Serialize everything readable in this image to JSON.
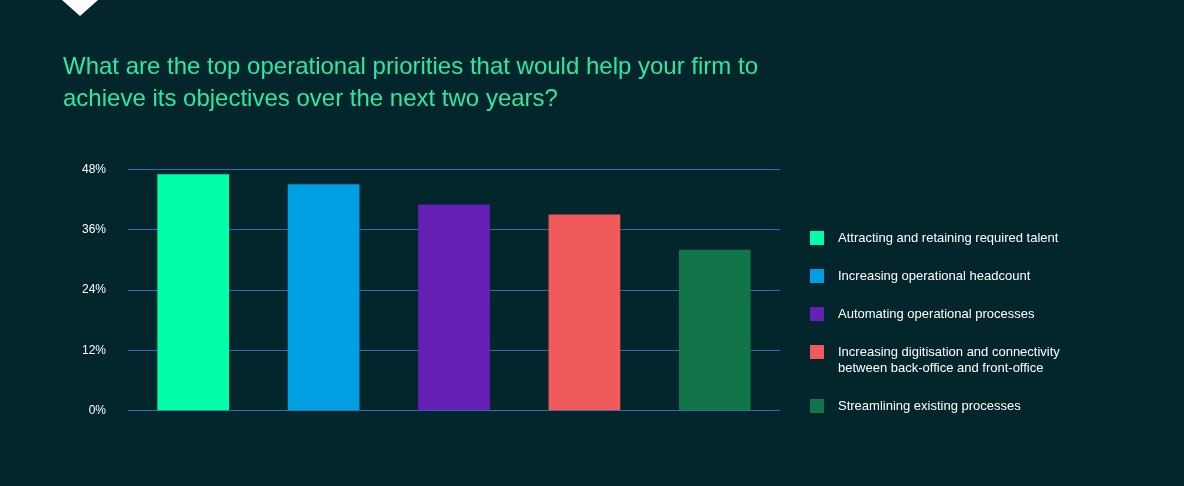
{
  "chart_data": {
    "type": "bar",
    "title": "What are the top operational priorities that would help your firm to achieve its objectives over the next two years?",
    "categories": [
      null,
      null,
      null,
      null,
      null
    ],
    "series": [
      {
        "name": "Attracting and retaining required talent",
        "color": "#00ffa8",
        "values": [
          47,
          null,
          null,
          null,
          null
        ]
      },
      {
        "name": "Increasing operational headcount",
        "color": "#009fe3",
        "values": [
          null,
          45,
          null,
          null,
          null
        ]
      },
      {
        "name": "Automating operational processes",
        "color": "#6420b4",
        "values": [
          null,
          null,
          41,
          null,
          null
        ]
      },
      {
        "name": "Increasing digitisation and connectivity between back-office and front-office",
        "color": "#f05a5a",
        "values": [
          null,
          null,
          null,
          39,
          null
        ]
      },
      {
        "name": "Streamlining existing processes",
        "color": "#12754a",
        "values": [
          null,
          null,
          null,
          null,
          32
        ]
      }
    ],
    "ylim": [
      0,
      48
    ],
    "yticks": [
      {
        "value": 0,
        "label": "0%"
      },
      {
        "value": 12,
        "label": "12%"
      },
      {
        "value": 24,
        "label": "24%"
      },
      {
        "value": 36,
        "label": "36%"
      },
      {
        "value": 48,
        "label": "48%"
      }
    ],
    "grid": "y",
    "legend": "right"
  }
}
